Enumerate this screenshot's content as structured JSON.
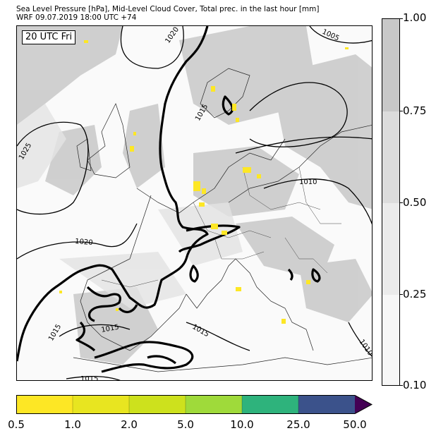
{
  "header": {
    "line1": "Sea Level Pressure [hPa], Mid-Level Cloud Cover, Total prec. in the last hour [mm]",
    "line2": "WRF 09.07.2019 18:00 UTC +74"
  },
  "map": {
    "time_label": "20 UTC Fri",
    "isobar_labels": [
      "1020",
      "1005",
      "1015",
      "1025",
      "1010",
      "1020",
      "1015",
      "1015",
      "1015",
      "1010",
      "1015"
    ]
  },
  "cloud_colorbar": {
    "ticks": [
      "1.00",
      "0.75",
      "0.50",
      "0.25",
      "0.10"
    ],
    "colors": [
      "#c8c8c8",
      "#dcdcdc",
      "#ebebeb",
      "#f7f7f7"
    ]
  },
  "precip_colorbar": {
    "ticks": [
      "0.5",
      "1.0",
      "2.0",
      "5.0",
      "10.0",
      "25.0",
      "50.0"
    ],
    "colors": [
      "#fde725",
      "#e8e520",
      "#cde11d",
      "#9fda3a",
      "#2eb37c",
      "#3b528b",
      "#440154"
    ]
  }
}
